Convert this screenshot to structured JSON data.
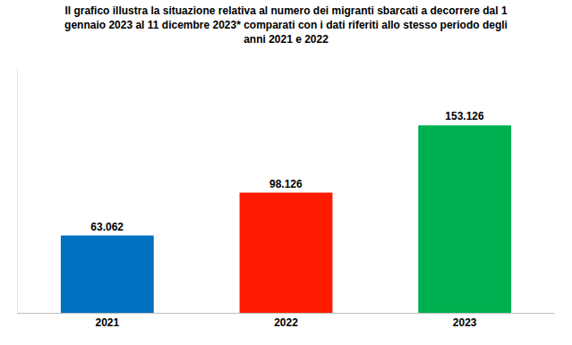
{
  "chart_data": {
    "type": "bar",
    "title": "Il grafico illustra la situazione relativa al numero dei migranti sbarcati a decorrere dal 1\ngennaio 2023 al 11 dicembre 2023* comparati con i dati riferiti allo stesso periodo degli\nanni 2021 e 2022",
    "categories": [
      "2021",
      "2022",
      "2023"
    ],
    "values": [
      63062,
      98126,
      153126
    ],
    "value_labels": [
      "63.062",
      "98.126",
      "153.126"
    ],
    "colors": [
      "#0070c0",
      "#ff1a00",
      "#00b050"
    ],
    "ylim": [
      0,
      200000
    ],
    "grid": false,
    "data_labels": true,
    "tick_labels": "x"
  }
}
